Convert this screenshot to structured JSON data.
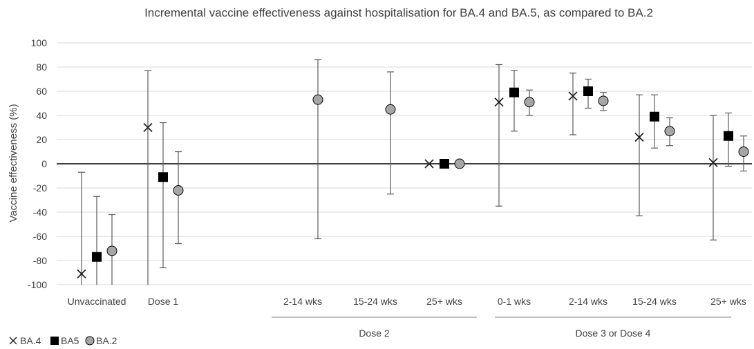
{
  "chart_data": {
    "type": "scatter",
    "title": "Incremental vaccine effectiveness against hospitalisation for BA.4 and BA.5, as compared to BA.2",
    "ylabel": "Vaccine effectiveness (%)",
    "ylim": [
      -100,
      100
    ],
    "yticks": [
      100,
      80,
      60,
      40,
      20,
      0,
      -20,
      -40,
      -60,
      -80,
      -100
    ],
    "grid": true,
    "legend_position": "bottom-left",
    "categories": [
      "Unvaccinated",
      "Dose 1",
      "2-14 wks",
      "15-24 wks",
      "25+ wks",
      "0-1 wks",
      "2-14 wks",
      "15-24 wks",
      "25+ wks"
    ],
    "groups": [
      {
        "label": "Dose 2",
        "categories": [
          2,
          3,
          4
        ]
      },
      {
        "label": "Dose 3 or Dose 4",
        "categories": [
          5,
          6,
          7,
          8
        ]
      }
    ],
    "series": [
      {
        "name": "BA.4",
        "marker": "cross",
        "color": "#1a1a1a",
        "values": [
          -91,
          30,
          null,
          null,
          0,
          51,
          56,
          22,
          1
        ],
        "lower": [
          -100,
          -100,
          null,
          null,
          null,
          -35,
          24,
          -43,
          -63
        ],
        "upper": [
          -7,
          77,
          null,
          null,
          null,
          82,
          75,
          57,
          40
        ]
      },
      {
        "name": "BA5",
        "marker": "square",
        "color": "#000000",
        "values": [
          -77,
          -11,
          null,
          null,
          0,
          59,
          60,
          39,
          23
        ],
        "lower": [
          -100,
          -86,
          null,
          null,
          null,
          27,
          46,
          13,
          -2
        ],
        "upper": [
          -27,
          34,
          null,
          null,
          null,
          77,
          70,
          57,
          42
        ]
      },
      {
        "name": "BA.2",
        "marker": "circle",
        "color": "#a6a6a6",
        "values": [
          -72,
          -22,
          53,
          45,
          0,
          51,
          52,
          27,
          10
        ],
        "lower": [
          -100,
          -66,
          -62,
          -25,
          null,
          40,
          44,
          15,
          -6
        ],
        "upper": [
          -42,
          10,
          86,
          76,
          null,
          61,
          59,
          38,
          23
        ]
      }
    ]
  },
  "colors": {
    "grid": "#d9d9d9",
    "axis": "#000000",
    "errorbar": "#595959",
    "text": "#404040"
  }
}
